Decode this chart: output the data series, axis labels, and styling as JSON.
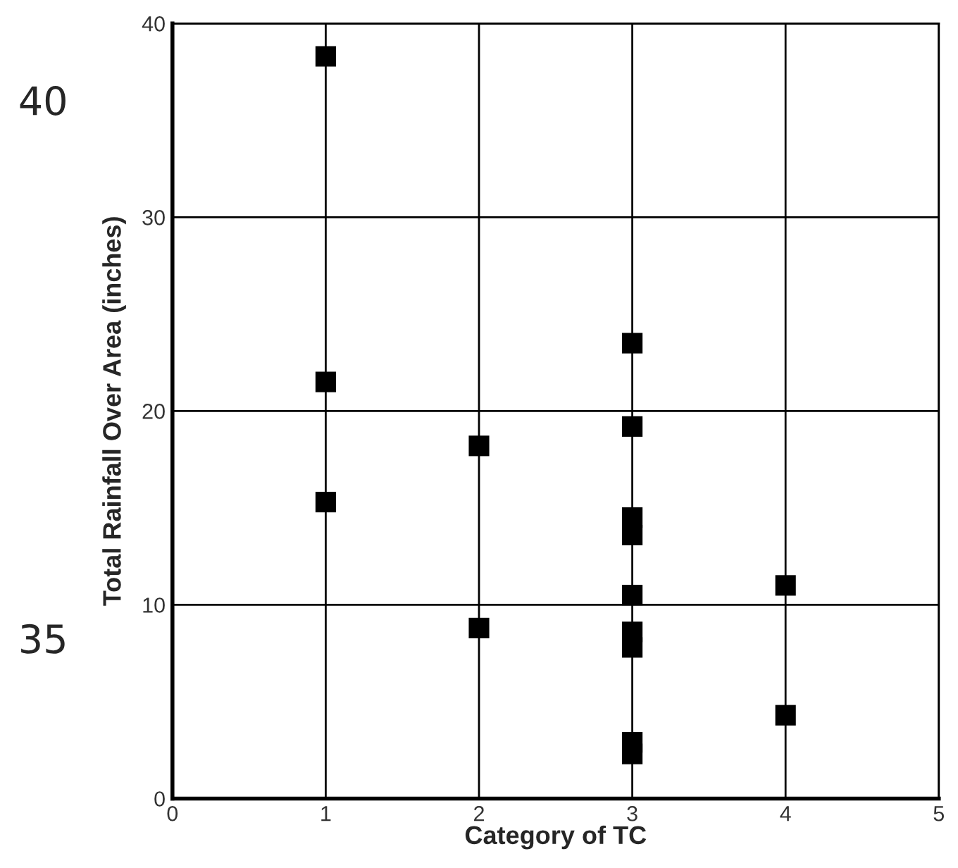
{
  "chart_data": {
    "type": "scatter",
    "xlabel": "Category of TC",
    "ylabel": "Total Rainfall Over Area (inches)",
    "series": [
      {
        "color": "#000000",
        "x": [
          1,
          1,
          1,
          2,
          2,
          3,
          3,
          3,
          3,
          3,
          3,
          3,
          3,
          3,
          4,
          4
        ],
        "values": [
          38.3,
          21.5,
          15.3,
          18.2,
          8.8,
          23.5,
          19.2,
          14.5,
          13.6,
          10.5,
          8.6,
          7.8,
          2.9,
          2.3,
          11.0,
          4.3
        ]
      }
    ],
    "marker": "square",
    "xlim": [
      0,
      5
    ],
    "xticks": [
      0,
      1,
      2,
      3,
      4,
      5
    ],
    "ylim": [
      0,
      40
    ],
    "yticks": [
      0,
      10,
      20,
      30,
      40
    ],
    "grid": true,
    "annotations": [
      "40",
      "35"
    ]
  }
}
